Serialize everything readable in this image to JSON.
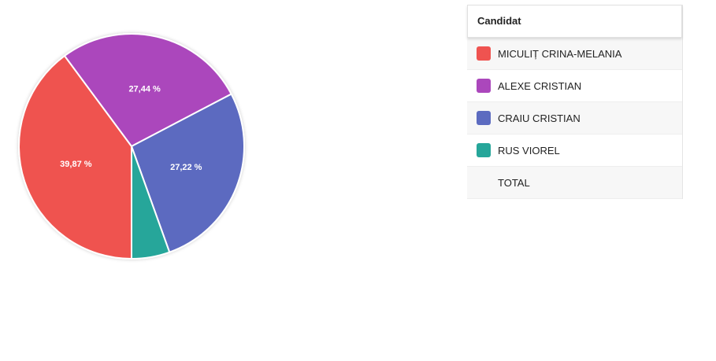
{
  "chart_data": {
    "type": "pie",
    "categories": [
      "MICULIȚ CRINA-MELANIA",
      "ALEXE CRISTIAN",
      "CRAIU CRISTIAN",
      "RUS VIOREL"
    ],
    "values": [
      39.87,
      27.44,
      27.22,
      5.47
    ],
    "value_labels": [
      "39,87 %",
      "27,44 %",
      "27,22 %",
      null
    ],
    "colors": [
      "#ef5350",
      "#ab47bc",
      "#5c6bc0",
      "#26a69a"
    ]
  },
  "table": {
    "header": "Candidat",
    "total": "TOTAL"
  }
}
